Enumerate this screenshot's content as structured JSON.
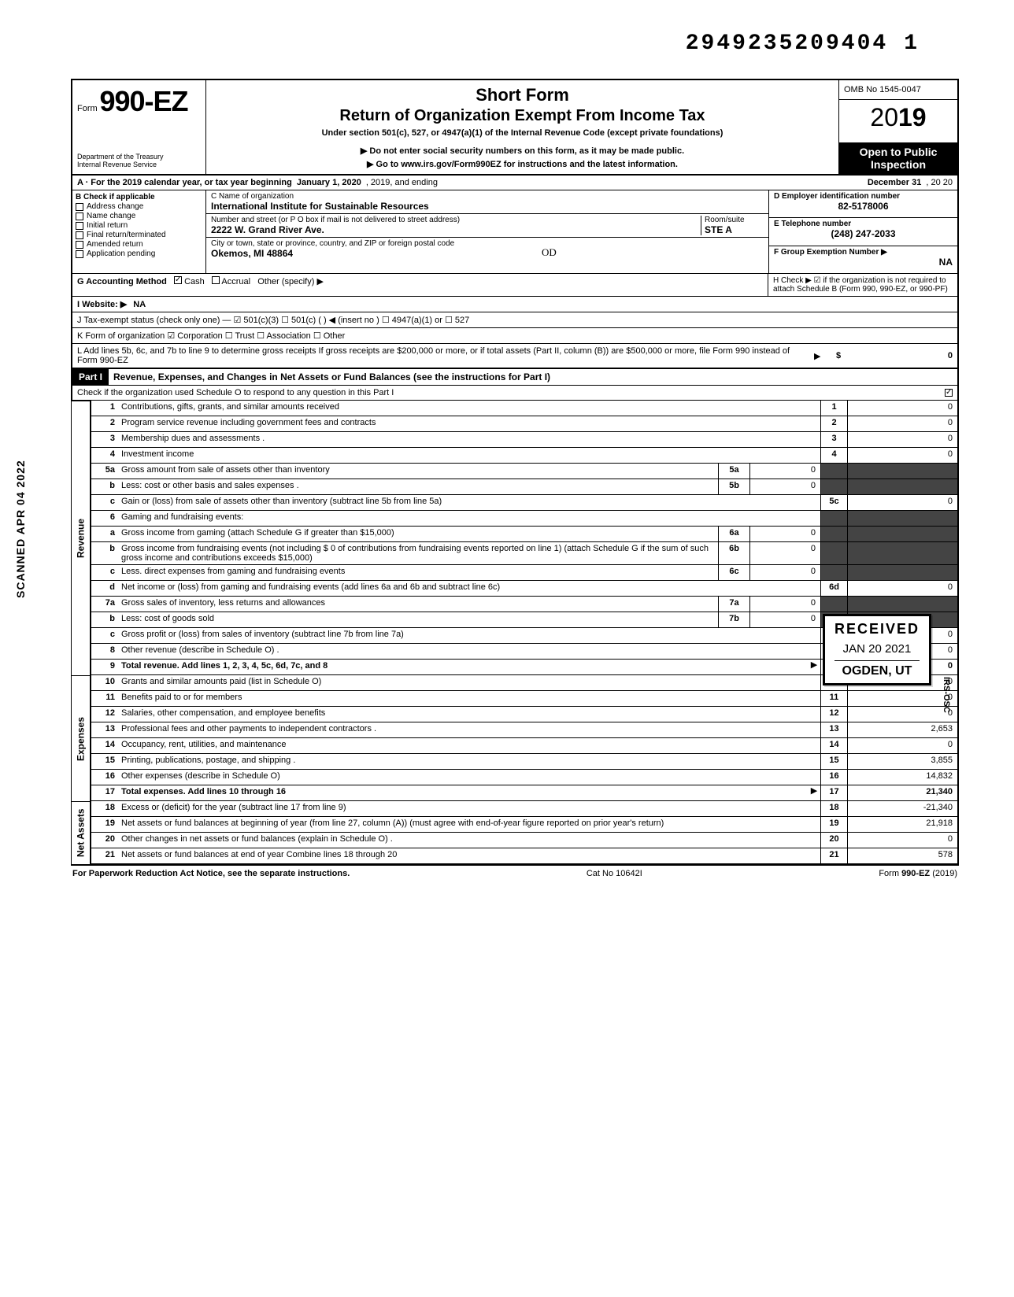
{
  "top_number": "2949235209404",
  "top_number_suffix": "1",
  "side_stamp": "SCANNED APR 04 2022",
  "header": {
    "form_prefix": "Form",
    "form_no": "990-EZ",
    "title1": "Short Form",
    "title2": "Return of Organization Exempt From Income Tax",
    "subtitle": "Under section 501(c), 527, or 4947(a)(1) of the Internal Revenue Code (except private foundations)",
    "arrow1": "▶ Do not enter social security numbers on this form, as it may be made public.",
    "arrow2": "▶ Go to www.irs.gov/Form990EZ for instructions and the latest information.",
    "dept": "Department of the Treasury",
    "irs": "Internal Revenue Service",
    "omb": "OMB No 1545-0047",
    "year": "2019",
    "open_public": "Open to Public Inspection"
  },
  "line_a": {
    "label": "A · For the 2019 calendar year, or tax year beginning",
    "begin": "January 1, 2020",
    "mid": ", 2019, and ending",
    "end_month": "December 31",
    "end_year": ", 20   20"
  },
  "block_b": {
    "header": "B  Check if applicable",
    "items": [
      "Address change",
      "Name change",
      "Initial return",
      "Final return/terminated",
      "Amended return",
      "Application pending"
    ]
  },
  "block_c": {
    "name_label": "C  Name of organization",
    "name": "International Institute for Sustainable Resources",
    "addr_label": "Number and street (or P O  box if mail is not delivered to street address)",
    "room_label": "Room/suite",
    "addr": "2222 W. Grand River Ave.",
    "suite": "STE A",
    "city_label": "City or town, state or province, country, and ZIP or foreign postal code",
    "city": "Okemos, MI 48864"
  },
  "block_d": {
    "label": "D Employer identification number",
    "value": "82-5178006"
  },
  "block_e": {
    "label": "E Telephone number",
    "value": "(248) 247-2033"
  },
  "block_f": {
    "label": "F Group Exemption Number ▶",
    "value": "NA"
  },
  "row_g": {
    "label": "G  Accounting Method",
    "cash": "Cash",
    "accrual": "Accrual",
    "other": "Other (specify) ▶"
  },
  "row_h": "H  Check ▶ ☑ if the organization is not required to attach Schedule B (Form 990, 990-EZ, or 990-PF)",
  "row_i": {
    "label": "I   Website: ▶",
    "value": "NA"
  },
  "row_j": "J  Tax-exempt status (check only one) —  ☑ 501(c)(3)   ☐ 501(c) (      ) ◀ (insert no )  ☐ 4947(a)(1) or   ☐ 527",
  "row_k": "K  Form of organization   ☑ Corporation   ☐ Trust   ☐ Association   ☐ Other",
  "row_l": "L  Add lines 5b, 6c, and 7b to line 9 to determine gross receipts  If gross receipts are $200,000 or more, or if total assets (Part II, column (B)) are $500,000 or more, file Form 990 instead of Form 990-EZ",
  "row_l_amt": "0",
  "part1": {
    "label": "Part I",
    "title": "Revenue, Expenses, and Changes in Net Assets or Fund Balances (see the instructions for Part I)",
    "check_line": "Check if the organization used Schedule O to respond to any question in this Part I",
    "side_revenue": "Revenue",
    "side_expenses": "Expenses",
    "side_netassets": "Net Assets"
  },
  "lines": {
    "l1": {
      "n": "1",
      "d": "Contributions, gifts, grants, and similar amounts received",
      "c": "1",
      "a": "0"
    },
    "l2": {
      "n": "2",
      "d": "Program service revenue including government fees and contracts",
      "c": "2",
      "a": "0"
    },
    "l3": {
      "n": "3",
      "d": "Membership dues and assessments .",
      "c": "3",
      "a": "0"
    },
    "l4": {
      "n": "4",
      "d": "Investment income",
      "c": "4",
      "a": "0"
    },
    "l5a": {
      "n": "5a",
      "d": "Gross amount from sale of assets other than inventory",
      "m": "5a",
      "mv": "0"
    },
    "l5b": {
      "n": "b",
      "d": "Less: cost or other basis and sales expenses .",
      "m": "5b",
      "mv": "0"
    },
    "l5c": {
      "n": "c",
      "d": "Gain or (loss) from sale of assets other than inventory (subtract line 5b from line 5a)",
      "c": "5c",
      "a": "0"
    },
    "l6": {
      "n": "6",
      "d": "Gaming and fundraising events:"
    },
    "l6a": {
      "n": "a",
      "d": "Gross income from gaming (attach Schedule G if greater than $15,000)",
      "m": "6a",
      "mv": "0"
    },
    "l6b": {
      "n": "b",
      "d": "Gross income from fundraising events (not including  $                  0 of contributions from fundraising events reported on line 1) (attach Schedule G if the sum of such gross income and contributions exceeds $15,000)",
      "m": "6b",
      "mv": "0"
    },
    "l6c": {
      "n": "c",
      "d": "Less. direct expenses from gaming and fundraising events",
      "m": "6c",
      "mv": "0"
    },
    "l6d": {
      "n": "d",
      "d": "Net income or (loss) from gaming and fundraising events (add lines 6a and 6b and subtract line 6c)",
      "c": "6d",
      "a": "0"
    },
    "l7a": {
      "n": "7a",
      "d": "Gross sales of inventory, less returns and allowances",
      "m": "7a",
      "mv": "0"
    },
    "l7b": {
      "n": "b",
      "d": "Less: cost of goods sold",
      "m": "7b",
      "mv": "0"
    },
    "l7c": {
      "n": "c",
      "d": "Gross profit or (loss) from sales of inventory (subtract line 7b from line 7a)",
      "c": "7c",
      "a": "0"
    },
    "l8": {
      "n": "8",
      "d": "Other revenue (describe in Schedule O) .",
      "c": "8",
      "a": "0"
    },
    "l9": {
      "n": "9",
      "d": "Total revenue. Add lines 1, 2, 3, 4, 5c, 6d, 7c, and 8",
      "c": "9",
      "a": "0",
      "bold": true
    },
    "l10": {
      "n": "10",
      "d": "Grants and similar amounts paid (list in Schedule O)",
      "c": "10",
      "a": "0"
    },
    "l11": {
      "n": "11",
      "d": "Benefits paid to or for members",
      "c": "11",
      "a": "0"
    },
    "l12": {
      "n": "12",
      "d": "Salaries, other compensation, and employee benefits",
      "c": "12",
      "a": "0"
    },
    "l13": {
      "n": "13",
      "d": "Professional fees and other payments to independent contractors .",
      "c": "13",
      "a": "2,653"
    },
    "l14": {
      "n": "14",
      "d": "Occupancy, rent, utilities, and maintenance",
      "c": "14",
      "a": "0"
    },
    "l15": {
      "n": "15",
      "d": "Printing, publications, postage, and shipping .",
      "c": "15",
      "a": "3,855"
    },
    "l16": {
      "n": "16",
      "d": "Other expenses (describe in Schedule O)",
      "c": "16",
      "a": "14,832"
    },
    "l17": {
      "n": "17",
      "d": "Total expenses. Add lines 10 through 16",
      "c": "17",
      "a": "21,340",
      "bold": true
    },
    "l18": {
      "n": "18",
      "d": "Excess or (deficit) for the year (subtract line 17 from line 9)",
      "c": "18",
      "a": "-21,340"
    },
    "l19": {
      "n": "19",
      "d": "Net assets or fund balances at beginning of year (from line 27, column (A)) (must agree with end-of-year figure reported on prior year's return)",
      "c": "19",
      "a": "21,918"
    },
    "l20": {
      "n": "20",
      "d": "Other changes in net assets or fund balances (explain in Schedule O) .",
      "c": "20",
      "a": "0"
    },
    "l21": {
      "n": "21",
      "d": "Net assets or fund balances at end of year  Combine lines 18 through 20",
      "c": "21",
      "a": "578"
    }
  },
  "received": {
    "r1": "RECEIVED",
    "r2": "JAN 20 2021",
    "r3": "OGDEN, UT"
  },
  "vert_irs": "IRS-OSC",
  "footer": {
    "left": "For Paperwork Reduction Act Notice, see the separate instructions.",
    "mid": "Cat No  10642I",
    "right": "Form 990-EZ (2019)"
  },
  "handwritten_initials": "OD"
}
